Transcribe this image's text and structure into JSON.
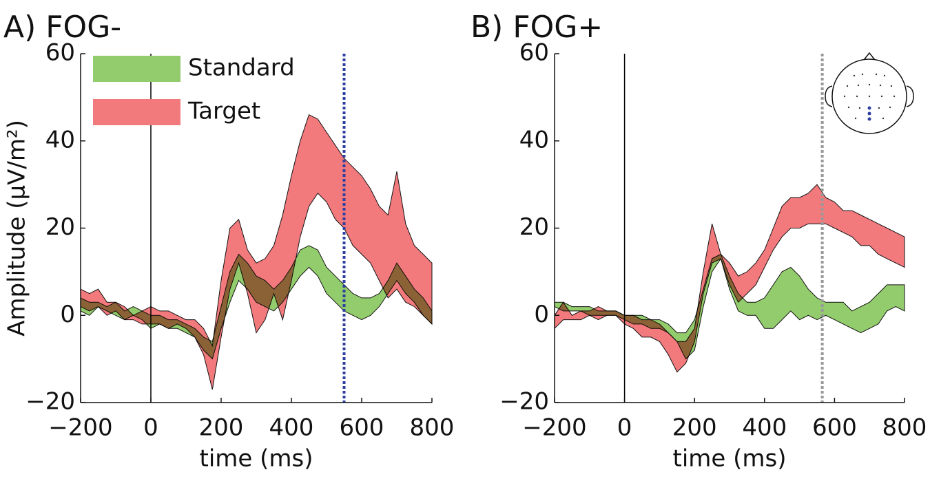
{
  "chart_data": [
    {
      "type": "band",
      "title": "A) FOG-",
      "xlabel": "time (ms)",
      "ylabel": "Amplitude (µV/m²)",
      "x": [
        -200,
        -175,
        -150,
        -125,
        -100,
        -75,
        -50,
        -25,
        0,
        25,
        50,
        75,
        100,
        125,
        150,
        175,
        200,
        225,
        250,
        275,
        300,
        325,
        350,
        375,
        400,
        425,
        450,
        475,
        500,
        525,
        550,
        575,
        600,
        625,
        650,
        675,
        700,
        725,
        750,
        775,
        800
      ],
      "series": [
        {
          "name": "Standard",
          "color": "#93cc6c",
          "lower": [
            1,
            0,
            2,
            1,
            0,
            -1,
            0,
            -1,
            -3,
            -2,
            -3,
            -3,
            -4,
            -5,
            -8,
            -10,
            -3,
            3,
            8,
            6,
            3,
            2,
            1,
            3,
            6,
            9,
            11,
            9,
            5,
            3,
            1,
            0,
            -1,
            0,
            2,
            5,
            8,
            5,
            3,
            0,
            -2
          ],
          "upper": [
            4,
            3,
            3,
            2,
            3,
            1,
            2,
            1,
            0,
            0,
            -1,
            -1,
            -2,
            -3,
            -5,
            -6,
            2,
            10,
            14,
            12,
            9,
            8,
            6,
            8,
            11,
            15,
            16,
            15,
            11,
            9,
            7,
            5,
            4,
            4,
            5,
            8,
            12,
            9,
            6,
            4,
            1
          ]
        },
        {
          "name": "Target",
          "color": "#f27a7d",
          "lower": [
            2,
            1,
            2,
            0,
            1,
            -1,
            -1,
            -2,
            -2,
            -2,
            -3,
            -2,
            -3,
            -5,
            -9,
            -17,
            -5,
            6,
            12,
            5,
            -4,
            -1,
            5,
            -1,
            8,
            18,
            25,
            28,
            26,
            22,
            20,
            16,
            14,
            12,
            8,
            4,
            6,
            3,
            2,
            0,
            -2
          ],
          "upper": [
            6,
            5,
            6,
            3,
            3,
            2,
            0,
            1,
            2,
            1,
            1,
            0,
            -1,
            -1,
            -3,
            -7,
            8,
            20,
            22,
            15,
            12,
            13,
            16,
            23,
            32,
            40,
            46,
            45,
            42,
            39,
            36,
            34,
            32,
            29,
            25,
            23,
            33,
            21,
            16,
            14,
            12
          ]
        }
      ],
      "vlines": [
        {
          "x": 0,
          "color": "#000000",
          "style": "solid"
        },
        {
          "x": 550,
          "color": "#2e3f9e",
          "style": "dotted"
        }
      ],
      "legend": "upper left",
      "xlim": [
        -200,
        800
      ],
      "xticks": [
        {
          "value": -200,
          "label": "−200"
        },
        0,
        200,
        400,
        600,
        800
      ],
      "ylim": [
        -20,
        60
      ],
      "yticks": [
        {
          "value": -20,
          "label": "−20"
        },
        0,
        20,
        40,
        60
      ]
    },
    {
      "type": "band",
      "title": "B) FOG+",
      "xlabel": "time (ms)",
      "x": [
        -200,
        -175,
        -150,
        -125,
        -100,
        -75,
        -50,
        -25,
        0,
        25,
        50,
        75,
        100,
        125,
        150,
        175,
        200,
        225,
        250,
        275,
        300,
        325,
        350,
        375,
        400,
        425,
        450,
        475,
        500,
        525,
        550,
        575,
        600,
        625,
        650,
        675,
        700,
        725,
        750,
        775,
        800
      ],
      "series": [
        {
          "color": "#93cc6c",
          "lower": [
            2,
            1,
            1,
            1,
            0,
            0,
            0,
            0,
            -1,
            -2,
            -2,
            -3,
            -3,
            -4,
            -6,
            -10,
            -8,
            2,
            10,
            13,
            6,
            1,
            0,
            0,
            -3,
            -3,
            -1,
            1,
            -1,
            0,
            -1,
            0,
            -1,
            -2,
            -3,
            -4,
            -3,
            -2,
            1,
            2,
            1
          ],
          "upper": [
            3,
            3,
            2,
            2,
            2,
            1,
            1,
            1,
            0,
            0,
            0,
            -1,
            -1,
            -2,
            -4,
            -4,
            -1,
            6,
            13,
            14,
            9,
            5,
            3,
            3,
            4,
            7,
            10,
            11,
            9,
            6,
            4,
            3,
            3,
            3,
            1,
            2,
            3,
            5,
            7,
            7,
            7
          ]
        },
        {
          "color": "#f27a7d",
          "lower": [
            -3,
            -1,
            -1,
            -1,
            0,
            -1,
            0,
            0,
            -2,
            -3,
            -5,
            -5,
            -6,
            -9,
            -13,
            -11,
            -6,
            5,
            12,
            13,
            7,
            3,
            5,
            7,
            11,
            15,
            18,
            20,
            20,
            21,
            21,
            21,
            20,
            19,
            18,
            16,
            16,
            14,
            13,
            12,
            11
          ],
          "upper": [
            0,
            3,
            0,
            1,
            1,
            2,
            1,
            1,
            0,
            0,
            -1,
            -1,
            -2,
            -4,
            -6,
            -6,
            -3,
            10,
            21,
            14,
            12,
            9,
            10,
            12,
            15,
            20,
            25,
            27,
            27,
            28,
            30,
            27,
            26,
            24,
            24,
            23,
            22,
            21,
            20,
            19,
            18
          ]
        }
      ],
      "vlines": [
        {
          "x": 0,
          "color": "#000000",
          "style": "solid"
        },
        {
          "x": 565,
          "color": "#999999",
          "style": "dotted"
        }
      ],
      "legend": false,
      "xlim": [
        -200,
        800
      ],
      "xticks": [
        {
          "value": -200,
          "label": "−200"
        },
        0,
        200,
        400,
        600,
        800
      ],
      "ylim": [
        -20,
        60
      ],
      "yticks": [
        {
          "value": -20,
          "label": "−20"
        },
        0,
        20,
        40,
        60
      ]
    }
  ]
}
